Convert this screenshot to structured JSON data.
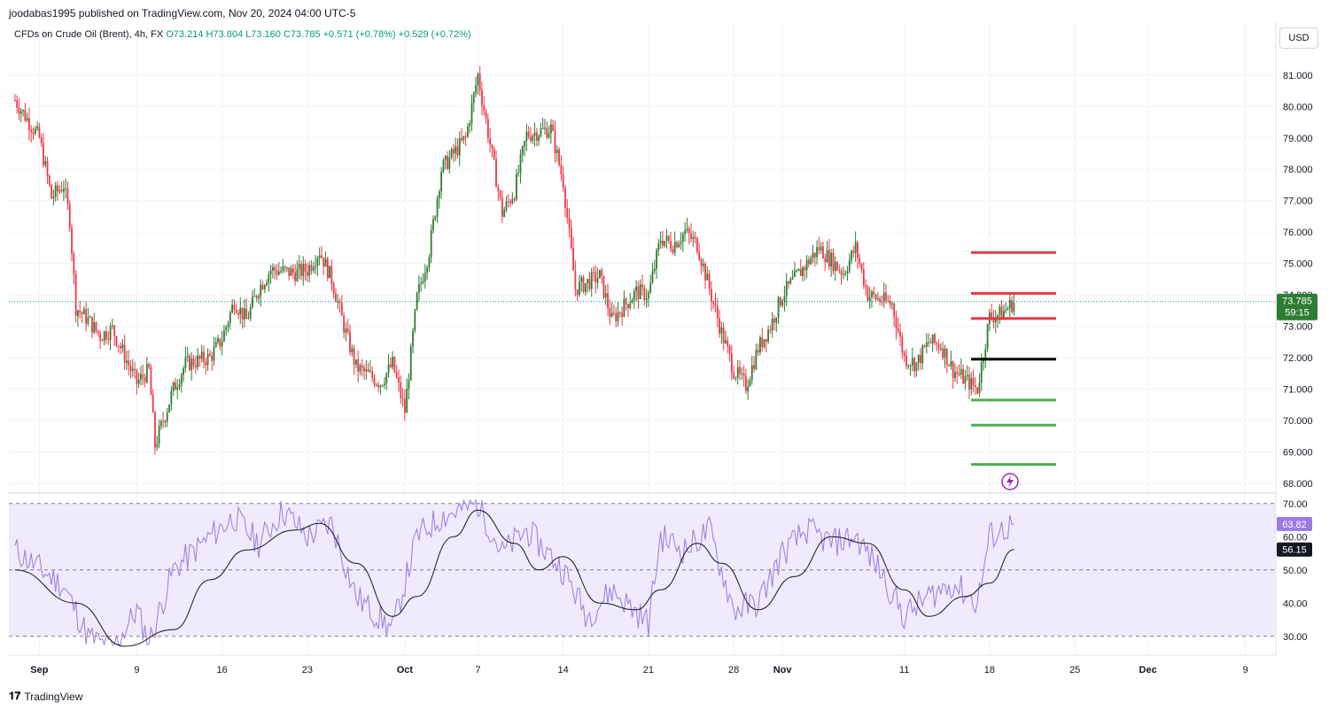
{
  "header": {
    "published": "joodabas1995 published on TradingView.com, Nov 20, 2024 04:00 UTC-5"
  },
  "symbol": {
    "name": "CFDs on Crude Oil (Brent)",
    "interval": "4h",
    "exchange": "FX",
    "open": "O73.214",
    "high": "H73.804",
    "low": "L73.160",
    "close": "C73.785",
    "change": "+0.571 (+0.78%)",
    "change2": "+0.529 (+0.72%)"
  },
  "currency_button": "USD",
  "footer": {
    "brand": "TradingView"
  },
  "colors": {
    "up": "#089981",
    "up_candle": "#2e7d32",
    "down_candle": "#f23645",
    "rsi_line": "#9c7ae0",
    "rsi_ma": "#131722",
    "rsi_band": "#efeafc",
    "resistance": "#e8394a",
    "support": "#4caf50",
    "pivot": "#000000"
  },
  "chart_data": [
    {
      "type": "candlestick",
      "title": "CFDs on Crude Oil (Brent), 4h, FX",
      "ylim": [
        67.8,
        81.7
      ],
      "y_ticks": [
        "68.000",
        "69.000",
        "70.000",
        "71.000",
        "72.000",
        "73.000",
        "74.000",
        "75.000",
        "76.000",
        "77.000",
        "78.000",
        "79.000",
        "80.000",
        "81.000"
      ],
      "x_ticks": [
        "Sep",
        "9",
        "16",
        "23",
        "Oct",
        "7",
        "14",
        "21",
        "28",
        "Nov",
        "11",
        "18",
        "25",
        "Dec",
        "9"
      ],
      "last_price": "73.785",
      "countdown": "59:15",
      "price_path": [
        [
          "Aug 30",
          80.2
        ],
        [
          "Sep 1",
          79.0
        ],
        [
          "Sep 2",
          77.1
        ],
        [
          "Sep 3",
          77.5
        ],
        [
          "Sep 3b",
          76.4
        ],
        [
          "Sep 4",
          73.6
        ],
        [
          "Sep 5",
          73.2
        ],
        [
          "Sep 6",
          72.7
        ],
        [
          "Sep 7",
          72.9
        ],
        [
          "Sep 9",
          71.2
        ],
        [
          "Sep 10",
          71.6
        ],
        [
          "Sep 10b",
          69.2
        ],
        [
          "Sep 11",
          69.8
        ],
        [
          "Sep 12",
          71.0
        ],
        [
          "Sep 13",
          71.8
        ],
        [
          "Sep 15",
          72.0
        ],
        [
          "Sep 16",
          72.6
        ],
        [
          "Sep 17",
          73.8
        ],
        [
          "Sep 18",
          73.2
        ],
        [
          "Sep 19",
          74.2
        ],
        [
          "Sep 20",
          74.8
        ],
        [
          "Sep 22",
          74.7
        ],
        [
          "Sep 23",
          74.8
        ],
        [
          "Sep 24",
          75.4
        ],
        [
          "Sep 25",
          74.5
        ],
        [
          "Sep 26",
          73.0
        ],
        [
          "Sep 27",
          71.7
        ],
        [
          "Sep 29",
          71.2
        ],
        [
          "Sep 30",
          71.8
        ],
        [
          "Oct 1",
          70.3
        ],
        [
          "Oct 2",
          73.9
        ],
        [
          "Oct 3",
          75.4
        ],
        [
          "Oct 4",
          78.0
        ],
        [
          "Oct 6",
          79.0
        ],
        [
          "Oct 7",
          81.0
        ],
        [
          "Oct 8",
          78.8
        ],
        [
          "Oct 9",
          76.6
        ],
        [
          "Oct 10",
          77.3
        ],
        [
          "Oct 11",
          79.1
        ],
        [
          "Oct 13",
          79.3
        ],
        [
          "Oct 14",
          77.6
        ],
        [
          "Oct 15",
          74.2
        ],
        [
          "Oct 16",
          74.4
        ],
        [
          "Oct 17",
          74.6
        ],
        [
          "Oct 18",
          73.2
        ],
        [
          "Oct 20",
          74.1
        ],
        [
          "Oct 21",
          74.0
        ],
        [
          "Oct 22",
          75.8
        ],
        [
          "Oct 23",
          75.6
        ],
        [
          "Oct 24",
          76.0
        ],
        [
          "Oct 25",
          75.6
        ],
        [
          "Oct 27",
          72.8
        ],
        [
          "Oct 28",
          71.6
        ],
        [
          "Oct 29",
          71.1
        ],
        [
          "Oct 30",
          72.3
        ],
        [
          "Oct 31",
          73.0
        ],
        [
          "Nov 1",
          74.0
        ],
        [
          "Nov 3",
          75.0
        ],
        [
          "Nov 4",
          75.5
        ],
        [
          "Nov 5",
          75.1
        ],
        [
          "Nov 6",
          74.7
        ],
        [
          "Nov 7",
          75.5
        ],
        [
          "Nov 8",
          74.0
        ],
        [
          "Nov 10",
          73.7
        ],
        [
          "Nov 11",
          72.0
        ],
        [
          "Nov 12",
          71.8
        ],
        [
          "Nov 13",
          72.5
        ],
        [
          "Nov 14",
          72.4
        ],
        [
          "Nov 15",
          71.6
        ],
        [
          "Nov 17",
          71.0
        ],
        [
          "Nov 18",
          73.3
        ],
        [
          "Nov 19",
          73.4
        ],
        [
          "Nov 20",
          73.785
        ]
      ],
      "horizontal_levels": [
        {
          "price": 75.35,
          "role": "resistance"
        },
        {
          "price": 74.05,
          "role": "resistance"
        },
        {
          "price": 73.25,
          "role": "resistance"
        },
        {
          "price": 71.95,
          "role": "pivot"
        },
        {
          "price": 70.65,
          "role": "support"
        },
        {
          "price": 69.85,
          "role": "support"
        },
        {
          "price": 68.6,
          "role": "support"
        }
      ]
    },
    {
      "type": "line",
      "title": "RSI",
      "ylim": [
        27,
        71
      ],
      "y_ticks": [
        "30.00",
        "40.00",
        "50.00",
        "60.00",
        "70.00"
      ],
      "band": [
        30,
        70
      ],
      "rsi_value": "63.82",
      "ma_value": "56.15",
      "rsi_path": [
        [
          "Aug 30",
          56
        ],
        [
          "Sep 3",
          45
        ],
        [
          "Sep 5",
          30
        ],
        [
          "Sep 7",
          26
        ],
        [
          "Sep 9",
          38
        ],
        [
          "Sep 10",
          28
        ],
        [
          "Sep 12",
          50
        ],
        [
          "Sep 15",
          60
        ],
        [
          "Sep 17",
          66
        ],
        [
          "Sep 19",
          58
        ],
        [
          "Sep 21",
          68
        ],
        [
          "Sep 23",
          60
        ],
        [
          "Sep 25",
          64
        ],
        [
          "Sep 27",
          42
        ],
        [
          "Sep 30",
          32
        ],
        [
          "Oct 2",
          60
        ],
        [
          "Oct 4",
          66
        ],
        [
          "Oct 7",
          70
        ],
        [
          "Oct 9",
          55
        ],
        [
          "Oct 11",
          62
        ],
        [
          "Oct 14",
          50
        ],
        [
          "Oct 16",
          36
        ],
        [
          "Oct 18",
          44
        ],
        [
          "Oct 21",
          34
        ],
        [
          "Oct 22",
          60
        ],
        [
          "Oct 24",
          56
        ],
        [
          "Oct 26",
          62
        ],
        [
          "Oct 28",
          38
        ],
        [
          "Oct 30",
          40
        ],
        [
          "Nov 1",
          55
        ],
        [
          "Nov 3",
          62
        ],
        [
          "Nov 5",
          58
        ],
        [
          "Nov 7",
          60
        ],
        [
          "Nov 9",
          50
        ],
        [
          "Nov 11",
          36
        ],
        [
          "Nov 13",
          42
        ],
        [
          "Nov 15",
          46
        ],
        [
          "Nov 17",
          40
        ],
        [
          "Nov 18",
          60
        ],
        [
          "Nov 20",
          63.82
        ]
      ],
      "ma_path": [
        [
          "Aug 30",
          50
        ],
        [
          "Sep 4",
          40
        ],
        [
          "Sep 8",
          27
        ],
        [
          "Sep 12",
          32
        ],
        [
          "Sep 15",
          47
        ],
        [
          "Sep 18",
          56
        ],
        [
          "Sep 22",
          62
        ],
        [
          "Sep 24",
          64
        ],
        [
          "Sep 27",
          52
        ],
        [
          "Sep 30",
          36
        ],
        [
          "Oct 2",
          42
        ],
        [
          "Oct 5",
          60
        ],
        [
          "Oct 7",
          68
        ],
        [
          "Oct 10",
          58
        ],
        [
          "Oct 12",
          50
        ],
        [
          "Oct 14",
          54
        ],
        [
          "Oct 17",
          40
        ],
        [
          "Oct 20",
          38
        ],
        [
          "Oct 22",
          44
        ],
        [
          "Oct 25",
          58
        ],
        [
          "Oct 27",
          52
        ],
        [
          "Oct 30",
          38
        ],
        [
          "Nov 2",
          48
        ],
        [
          "Nov 5",
          60
        ],
        [
          "Nov 8",
          58
        ],
        [
          "Nov 11",
          44
        ],
        [
          "Nov 13",
          36
        ],
        [
          "Nov 16",
          42
        ],
        [
          "Nov 18",
          46
        ],
        [
          "Nov 20",
          56.15
        ]
      ]
    }
  ]
}
